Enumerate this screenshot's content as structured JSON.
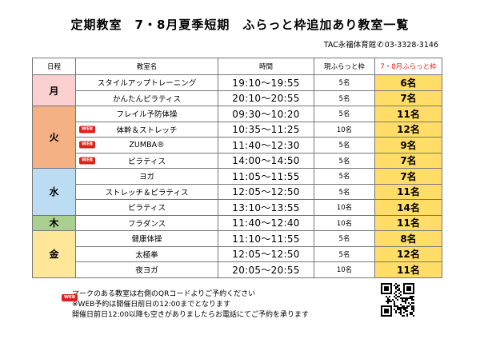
{
  "title": "定期教室　7・8月夏季短期　ふらっと枠追加あり教室一覧",
  "contact": {
    "gym": "TAC永福体育館",
    "phone_icon": "phone-icon",
    "phone": "03-3328-3146"
  },
  "headers": {
    "day": "日程",
    "class": "教室名",
    "time": "時間",
    "current": "現ふらっと枠",
    "summer": "7・8月ふらっと枠"
  },
  "web_badge": "WEB",
  "colors": {
    "mon": "#f9cfd0",
    "tue": "#f4b183",
    "wed": "#bcdcf3",
    "thu": "#a9d08e",
    "fri": "#ffe699",
    "highlight": "#ffdd66",
    "accent": "#e0201c"
  },
  "days": [
    {
      "label": "月",
      "rows": [
        {
          "name": "スタイルアップトレーニング",
          "web": false,
          "time": "19:10～19:55",
          "current": "5名",
          "summer": "6名"
        },
        {
          "name": "かんたんピラティス",
          "web": false,
          "time": "20:10～20:55",
          "current": "5名",
          "summer": "7名"
        }
      ]
    },
    {
      "label": "火",
      "rows": [
        {
          "name": "フレイル予防体操",
          "web": false,
          "time": "09:30～10:20",
          "current": "5名",
          "summer": "11名"
        },
        {
          "name": "体幹＆ストレッチ",
          "web": true,
          "time": "10:35～11:25",
          "current": "10名",
          "summer": "12名"
        },
        {
          "name": "ZUMBA®",
          "web": true,
          "time": "11:40～12:30",
          "current": "5名",
          "summer": "9名"
        },
        {
          "name": "ピラティス",
          "web": true,
          "time": "14:00～14:50",
          "current": "5名",
          "summer": "7名"
        }
      ]
    },
    {
      "label": "水",
      "rows": [
        {
          "name": "ヨガ",
          "web": false,
          "time": "11:05～11:55",
          "current": "5名",
          "summer": "7名"
        },
        {
          "name": "ストレッチ＆ピラティス",
          "web": false,
          "time": "12:05～12:50",
          "current": "5名",
          "summer": "11名"
        },
        {
          "name": "ピラティス",
          "web": false,
          "time": "13:10～13:55",
          "current": "10名",
          "summer": "14名"
        }
      ]
    },
    {
      "label": "木",
      "rows": [
        {
          "name": "フラダンス",
          "web": false,
          "time": "11:40～12:40",
          "current": "10名",
          "summer": "11名"
        }
      ]
    },
    {
      "label": "金",
      "rows": [
        {
          "name": "健康体操",
          "web": false,
          "time": "11:10～11:55",
          "current": "5名",
          "summer": "8名"
        },
        {
          "name": "太極拳",
          "web": false,
          "time": "12:05～12:50",
          "current": "5名",
          "summer": "12名"
        },
        {
          "name": "夜ヨガ",
          "web": false,
          "time": "20:05～20:55",
          "current": "10名",
          "summer": "11名"
        }
      ]
    }
  ],
  "notes": {
    "line1": "マークのある教室は右側のQRコードよりご予約ください",
    "line2": "※WEB予約は開催日前日の12:00までとなります",
    "line3": "開催日前日12:00以降も空きがありましたらお電話にてご予約を承ります"
  },
  "qr_icon": "qr-code-icon"
}
